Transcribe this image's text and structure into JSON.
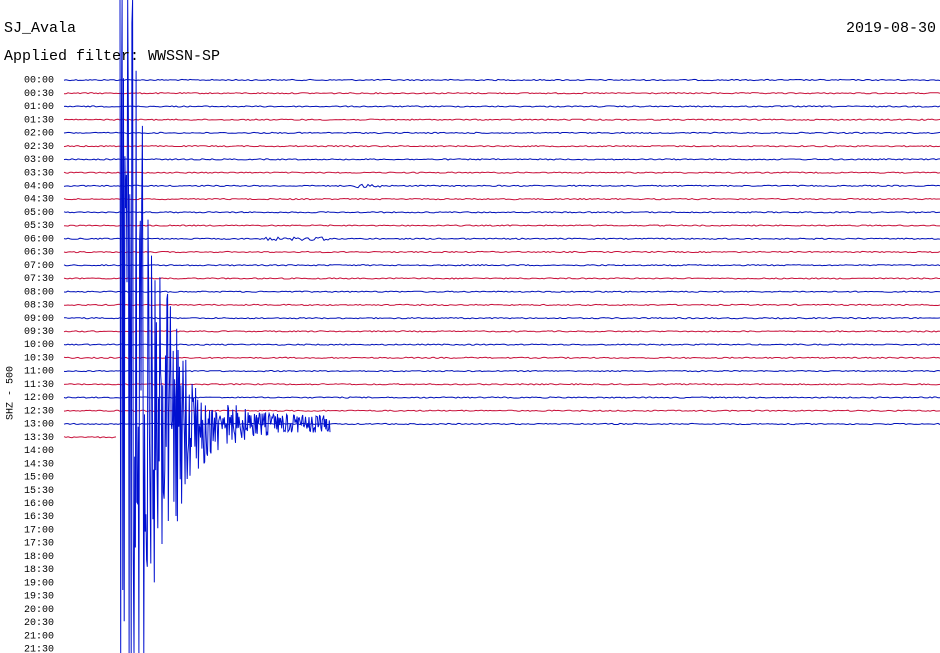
{
  "header": {
    "station": "SJ_Avala",
    "date": "2019-08-30",
    "filter": "Applied filter: WWSSN-SP"
  },
  "channel_label": "SHZ - 500",
  "rows": [
    "00:00",
    "00:30",
    "01:00",
    "01:30",
    "02:00",
    "02:30",
    "03:00",
    "03:30",
    "04:00",
    "04:30",
    "05:00",
    "05:30",
    "06:00",
    "06:30",
    "07:00",
    "07:30",
    "08:00",
    "08:30",
    "09:00",
    "09:30",
    "10:00",
    "10:30",
    "11:00",
    "11:30",
    "12:00",
    "12:30",
    "13:00",
    "13:30",
    "14:00",
    "14:30",
    "15:00",
    "15:30",
    "16:00",
    "16:30",
    "17:00",
    "17:30",
    "18:00",
    "18:30",
    "19:00",
    "19:30",
    "20:00",
    "20:30",
    "21:00",
    "21:30"
  ]
}
